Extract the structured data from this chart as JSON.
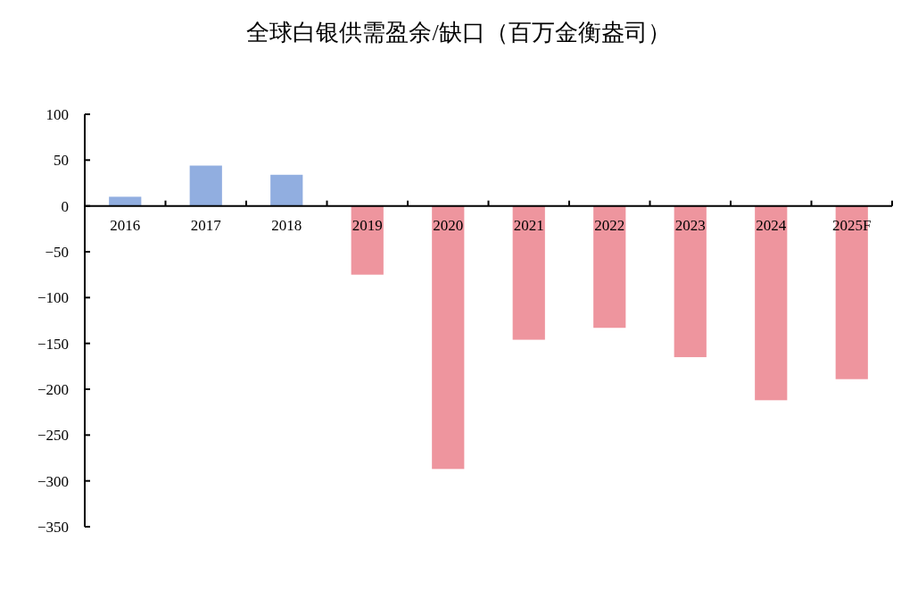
{
  "chart_data": {
    "type": "bar",
    "title": "全球白银供需盈余/缺口（百万金衡盎司）",
    "categories": [
      "2016",
      "2017",
      "2018",
      "2019",
      "2020",
      "2021",
      "2022",
      "2023",
      "2024",
      "2025F"
    ],
    "values": [
      10,
      44,
      34,
      -75,
      -287,
      -146,
      -133,
      -165,
      -212,
      -189
    ],
    "colors": [
      "#91aee0",
      "#91aee0",
      "#91aee0",
      "#ee959e",
      "#ee959e",
      "#ee959e",
      "#ee959e",
      "#ee959e",
      "#ee959e",
      "#ee959e"
    ],
    "ylim": [
      -350,
      100
    ],
    "yticks": [
      -350,
      -300,
      -250,
      -200,
      -150,
      -100,
      -50,
      0,
      50,
      100
    ],
    "grid": false
  }
}
